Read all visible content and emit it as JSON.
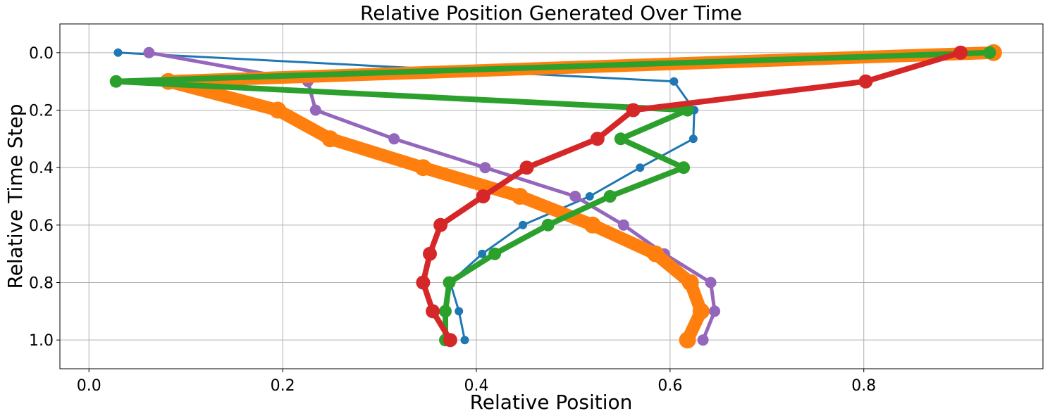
{
  "chart_data": {
    "type": "line",
    "title": "Relative Position Generated Over Time",
    "xlabel": "Relative Position",
    "ylabel": "Relative Time Step",
    "xlim": [
      -0.03,
      0.985
    ],
    "ylim": [
      1.1,
      -0.1
    ],
    "y_inverted": true,
    "grid": true,
    "x_ticks": [
      0.0,
      0.2,
      0.4,
      0.6,
      0.8
    ],
    "x_tick_labels": [
      "0.0",
      "0.2",
      "0.4",
      "0.6",
      "0.8"
    ],
    "y_ticks": [
      0.0,
      0.2,
      0.4,
      0.6,
      0.8,
      1.0
    ],
    "y_tick_labels": [
      "0.0",
      "0.2",
      "0.4",
      "0.6",
      "0.8",
      "1.0"
    ],
    "series": [
      {
        "color": "#1f77b4",
        "line_width": 3,
        "marker_size": 12,
        "x": [
          0.03,
          0.604,
          0.625,
          0.624,
          0.569,
          0.517,
          0.448,
          0.406,
          0.373,
          0.382,
          0.388
        ],
        "y": [
          0.0,
          0.1,
          0.2,
          0.3,
          0.4,
          0.5,
          0.6,
          0.7,
          0.8,
          0.9,
          1.0
        ]
      },
      {
        "color": "#9467bd",
        "line_width": 5,
        "marker_size": 16,
        "x": [
          0.062,
          0.226,
          0.234,
          0.315,
          0.409,
          0.502,
          0.552,
          0.594,
          0.642,
          0.646,
          0.634
        ],
        "y": [
          0.0,
          0.1,
          0.2,
          0.3,
          0.4,
          0.5,
          0.6,
          0.7,
          0.8,
          0.9,
          1.0
        ]
      },
      {
        "color": "#ff7f0e",
        "line_width": 18,
        "marker_size": 24,
        "x": [
          0.934,
          0.082,
          0.195,
          0.249,
          0.345,
          0.445,
          0.52,
          0.585,
          0.621,
          0.632,
          0.618
        ],
        "y": [
          0.0,
          0.1,
          0.2,
          0.3,
          0.4,
          0.5,
          0.6,
          0.7,
          0.8,
          0.9,
          1.0
        ]
      },
      {
        "color": "#2ca02c",
        "line_width": 8,
        "marker_size": 18,
        "x": [
          0.93,
          0.028,
          0.618,
          0.549,
          0.614,
          0.538,
          0.474,
          0.419,
          0.372,
          0.368,
          0.368
        ],
        "y": [
          0.0,
          0.1,
          0.2,
          0.3,
          0.4,
          0.5,
          0.6,
          0.7,
          0.8,
          0.9,
          1.0
        ]
      },
      {
        "color": "#d62728",
        "line_width": 8,
        "marker_size": 20,
        "x": [
          0.9,
          0.802,
          0.562,
          0.525,
          0.452,
          0.407,
          0.363,
          0.352,
          0.345,
          0.355,
          0.373
        ],
        "y": [
          0.0,
          0.1,
          0.2,
          0.3,
          0.4,
          0.5,
          0.6,
          0.7,
          0.8,
          0.9,
          1.0
        ]
      }
    ]
  }
}
